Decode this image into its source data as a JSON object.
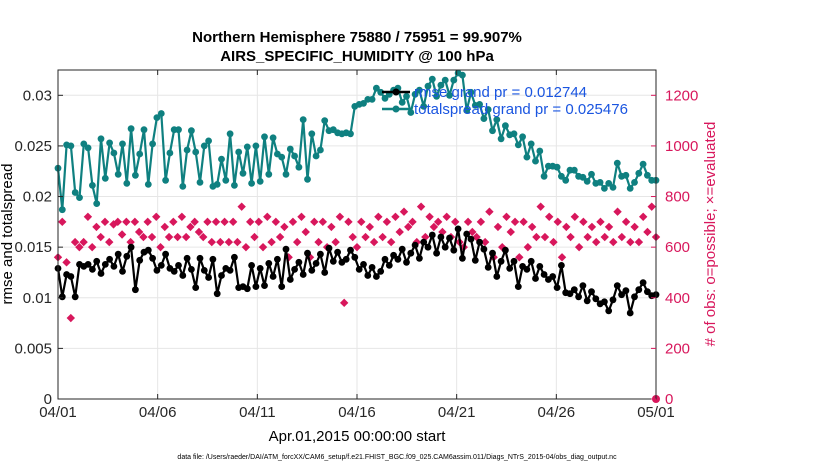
{
  "chart_data": {
    "type": "line",
    "title": "Northern Hemisphere 75880 / 75951 = 99.907%",
    "subtitle": "AIRS_SPECIFIC_HUMIDITY @ 100 hPa",
    "xlabel": "Apr.01,2015 00:00:00 start",
    "ylabel_left": "rmse and totalspread",
    "ylabel_right": "# of obs: o=possible; ×=evaluated",
    "footnote": "data file: /Users/raeder/DAI/ATM_forcXX/CAM6_setup/f.e21.FHIST_BGC.f09_025.CAM6assim.011/Diags_NTrS_2015-04/obs_diag_output.nc",
    "x_ticks": [
      {
        "day": 0,
        "label": "04/01"
      },
      {
        "day": 5,
        "label": "04/06"
      },
      {
        "day": 10,
        "label": "04/11"
      },
      {
        "day": 15,
        "label": "04/16"
      },
      {
        "day": 20,
        "label": "04/21"
      },
      {
        "day": 25,
        "label": "04/26"
      },
      {
        "day": 30,
        "label": "05/01"
      }
    ],
    "xlim_days": [
      0,
      30
    ],
    "y_left_ticks": [
      "0",
      "0.005",
      "0.01",
      "0.015",
      "0.02",
      "0.025",
      "0.03"
    ],
    "y_left_lim": [
      0,
      0.0325
    ],
    "y_right_ticks": [
      "0",
      "200",
      "400",
      "600",
      "800",
      "1000",
      "1200"
    ],
    "y_right_lim": [
      0,
      1300
    ],
    "grid": true,
    "legend_placement": "top-right",
    "colors": {
      "rmse": "#000000",
      "totalspread": "#0f8080",
      "obs": "#d8175c",
      "legend_text": "#1a55e0",
      "right_axis": "#d8175c"
    },
    "series": [
      {
        "name": "rmse grand pr = 0.012744",
        "key": "rmse",
        "values": [
          0.0129,
          0.0101,
          0.0123,
          0.0121,
          0.0101,
          0.0133,
          0.0131,
          0.0133,
          0.0128,
          0.0136,
          0.0124,
          0.0133,
          0.0138,
          0.0131,
          0.0143,
          0.0126,
          0.0141,
          0.015,
          0.0108,
          0.0137,
          0.0145,
          0.0147,
          0.0139,
          0.0127,
          0.0132,
          0.0143,
          0.0129,
          0.0126,
          0.0132,
          0.0122,
          0.0139,
          0.0128,
          0.011,
          0.0139,
          0.0127,
          0.012,
          0.0138,
          0.0104,
          0.0122,
          0.0129,
          0.0127,
          0.014,
          0.011,
          0.0111,
          0.0109,
          0.0132,
          0.0111,
          0.0129,
          0.0112,
          0.0134,
          0.0121,
          0.0138,
          0.0111,
          0.0148,
          0.0118,
          0.0128,
          0.0135,
          0.0123,
          0.0144,
          0.0127,
          0.0134,
          0.0143,
          0.0125,
          0.0149,
          0.0136,
          0.0145,
          0.0135,
          0.0138,
          0.0147,
          0.014,
          0.0128,
          0.0133,
          0.0122,
          0.013,
          0.0121,
          0.0126,
          0.0138,
          0.0132,
          0.0142,
          0.0138,
          0.0148,
          0.0135,
          0.0144,
          0.0152,
          0.0139,
          0.0155,
          0.015,
          0.0162,
          0.0144,
          0.016,
          0.015,
          0.0159,
          0.0147,
          0.0168,
          0.0139,
          0.0163,
          0.0158,
          0.0137,
          0.0155,
          0.0148,
          0.013,
          0.0144,
          0.0121,
          0.0136,
          0.0147,
          0.0129,
          0.0136,
          0.0111,
          0.0131,
          0.0128,
          0.0136,
          0.0119,
          0.0131,
          0.0123,
          0.0118,
          0.0121,
          0.011,
          0.0132,
          0.0105,
          0.0104,
          0.0108,
          0.0101,
          0.0112,
          0.0097,
          0.0106,
          0.0099,
          0.0094,
          0.0096,
          0.0087,
          0.0098,
          0.0112,
          0.0103,
          0.0107,
          0.0085,
          0.0101,
          0.0108,
          0.0115,
          0.0106,
          0.0102,
          0.0103
        ]
      },
      {
        "name": "totalspread grand pr = 0.025476",
        "key": "totalspread",
        "values": [
          0.0228,
          0.0187,
          0.0251,
          0.025,
          0.0204,
          0.0199,
          0.0252,
          0.0248,
          0.0211,
          0.0193,
          0.0257,
          0.0218,
          0.0253,
          0.0243,
          0.0222,
          0.0252,
          0.0213,
          0.0267,
          0.0221,
          0.0242,
          0.0266,
          0.0212,
          0.0252,
          0.0278,
          0.0282,
          0.0216,
          0.0243,
          0.0266,
          0.0266,
          0.021,
          0.0246,
          0.0265,
          0.0244,
          0.0214,
          0.025,
          0.0255,
          0.021,
          0.0212,
          0.0237,
          0.0216,
          0.0262,
          0.0211,
          0.0244,
          0.0223,
          0.0249,
          0.0213,
          0.025,
          0.0215,
          0.0259,
          0.0222,
          0.0258,
          0.0242,
          0.0239,
          0.0222,
          0.0247,
          0.024,
          0.0229,
          0.0276,
          0.0217,
          0.0262,
          0.024,
          0.0246,
          0.0275,
          0.0265,
          0.0266,
          0.0263,
          0.0262,
          0.0263,
          0.0262,
          0.0289,
          0.0291,
          0.0292,
          0.0296,
          0.0296,
          0.0307,
          0.0303,
          0.0297,
          0.0301,
          0.0305,
          0.0307,
          0.0293,
          0.0299,
          0.0283,
          0.0301,
          0.0305,
          0.0289,
          0.0309,
          0.0316,
          0.0299,
          0.031,
          0.0315,
          0.03,
          0.0315,
          0.0322,
          0.032,
          0.0285,
          0.0303,
          0.029,
          0.0291,
          0.0277,
          0.0286,
          0.0265,
          0.0276,
          0.0257,
          0.027,
          0.0261,
          0.0262,
          0.0251,
          0.0259,
          0.0239,
          0.0252,
          0.0235,
          0.0245,
          0.022,
          0.023,
          0.023,
          0.0229,
          0.022,
          0.0216,
          0.0226,
          0.0226,
          0.022,
          0.0219,
          0.0215,
          0.0222,
          0.0213,
          0.0214,
          0.0208,
          0.0213,
          0.0209,
          0.0233,
          0.022,
          0.0221,
          0.0208,
          0.0214,
          0.0223,
          0.0232,
          0.0221,
          0.0216,
          0.0216
        ]
      },
      {
        "name": "# of obs evaluated",
        "key": "obs",
        "axis": "right",
        "values": [
          560,
          700,
          540,
          320,
          620,
          600,
          620,
          720,
          600,
          680,
          640,
          700,
          620,
          690,
          700,
          650,
          700,
          620,
          700,
          660,
          640,
          700,
          640,
          720,
          600,
          680,
          640,
          700,
          640,
          720,
          640,
          680,
          700,
          660,
          640,
          700,
          620,
          700,
          620,
          700,
          620,
          700,
          620,
          760,
          600,
          700,
          640,
          700,
          600,
          720,
          620,
          700,
          640,
          680,
          560,
          700,
          620,
          720,
          660,
          560,
          700,
          620,
          700,
          600,
          680,
          620,
          720,
          380,
          700,
          640,
          600,
          700,
          640,
          680,
          620,
          720,
          640,
          700,
          620,
          720,
          660,
          740,
          680,
          700,
          620,
          760,
          640,
          720,
          680,
          700,
          660,
          720,
          640,
          700,
          620,
          600,
          700,
          660,
          640,
          700,
          620,
          740,
          560,
          680,
          600,
          720,
          660,
          700,
          560,
          700,
          600,
          680,
          640,
          760,
          640,
          720,
          620,
          700,
          560,
          680,
          640,
          720,
          600,
          700,
          640,
          680,
          620,
          700,
          640,
          680,
          620,
          740,
          640,
          700,
          620,
          680,
          620,
          720,
          660,
          760,
          640
        ]
      }
    ],
    "possible_marker": {
      "day": 30,
      "value": 0
    }
  }
}
